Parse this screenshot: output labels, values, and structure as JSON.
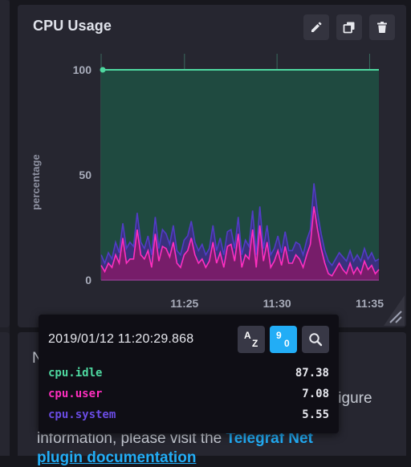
{
  "cell": {
    "title": "CPU Usage",
    "buttons": {
      "edit": "pencil-icon",
      "clone": "clone-icon",
      "delete": "trash-icon"
    }
  },
  "chart_data": {
    "type": "area",
    "ylabel": "percentage",
    "xlabel": "",
    "yticks": [
      0,
      50,
      100
    ],
    "ylim": [
      0,
      100
    ],
    "xticks": [
      "11:25",
      "11:30",
      "11:35"
    ],
    "x_range": [
      "11:20:30",
      "11:35:30"
    ],
    "grid": true,
    "series": [
      {
        "name": "cpu.idle",
        "color": "#4ed8a0",
        "values": [
          100,
          100
        ]
      },
      {
        "name": "cpu.system",
        "color": "#513cc6",
        "values": [
          12,
          8,
          13,
          10,
          18,
          13,
          27,
          15,
          18,
          16,
          32,
          18,
          15,
          21,
          12,
          30,
          15,
          24,
          22,
          17,
          26,
          14,
          12,
          19,
          21,
          28,
          18,
          14,
          17,
          12,
          15,
          26,
          14,
          20,
          12,
          23,
          24,
          15,
          30,
          12,
          19,
          16,
          33,
          12,
          35,
          15,
          26,
          12,
          15,
          21,
          13,
          23,
          14,
          14,
          18,
          17,
          12,
          19,
          24,
          46,
          32,
          22,
          14,
          9,
          7,
          10,
          13,
          11,
          9,
          14,
          9,
          12,
          9,
          15,
          10,
          13,
          9,
          10
        ]
      },
      {
        "name": "cpu.user",
        "color": "#ff2ebf",
        "values": [
          7,
          4,
          8,
          6,
          12,
          8,
          20,
          8,
          10,
          10,
          24,
          12,
          10,
          14,
          6,
          22,
          9,
          16,
          15,
          11,
          18,
          8,
          6,
          12,
          14,
          20,
          12,
          8,
          10,
          6,
          9,
          18,
          8,
          13,
          6,
          16,
          17,
          9,
          22,
          6,
          12,
          10,
          24,
          6,
          26,
          9,
          18,
          6,
          9,
          14,
          7,
          16,
          8,
          8,
          12,
          10,
          6,
          12,
          17,
          35,
          24,
          15,
          8,
          3,
          2,
          5,
          8,
          5,
          3,
          8,
          3,
          6,
          3,
          9,
          5,
          7,
          3,
          5
        ]
      }
    ]
  },
  "tooltip": {
    "timestamp": "2019/01/12 11:20:29.868",
    "sort_alpha": {
      "top": "A",
      "bottom": "Z"
    },
    "sort_numeric": {
      "top": "9",
      "bottom": "0"
    },
    "search_icon": "search-icon",
    "rows": [
      {
        "name": "cpu.idle",
        "value": "87.38",
        "color": "#4ed8a0"
      },
      {
        "name": "cpu.user",
        "value": "7.08",
        "color": "#ff2ebf"
      },
      {
        "name": "cpu.system",
        "value": "5.55",
        "color": "#6a4ce4"
      }
    ]
  },
  "bottom_cell": {
    "fragment_1": "N",
    "fragment_2": "figure",
    "fragment_3": "information, please visit the",
    "link_1": "Telegraf Net",
    "link_2": "plugin documentation"
  }
}
